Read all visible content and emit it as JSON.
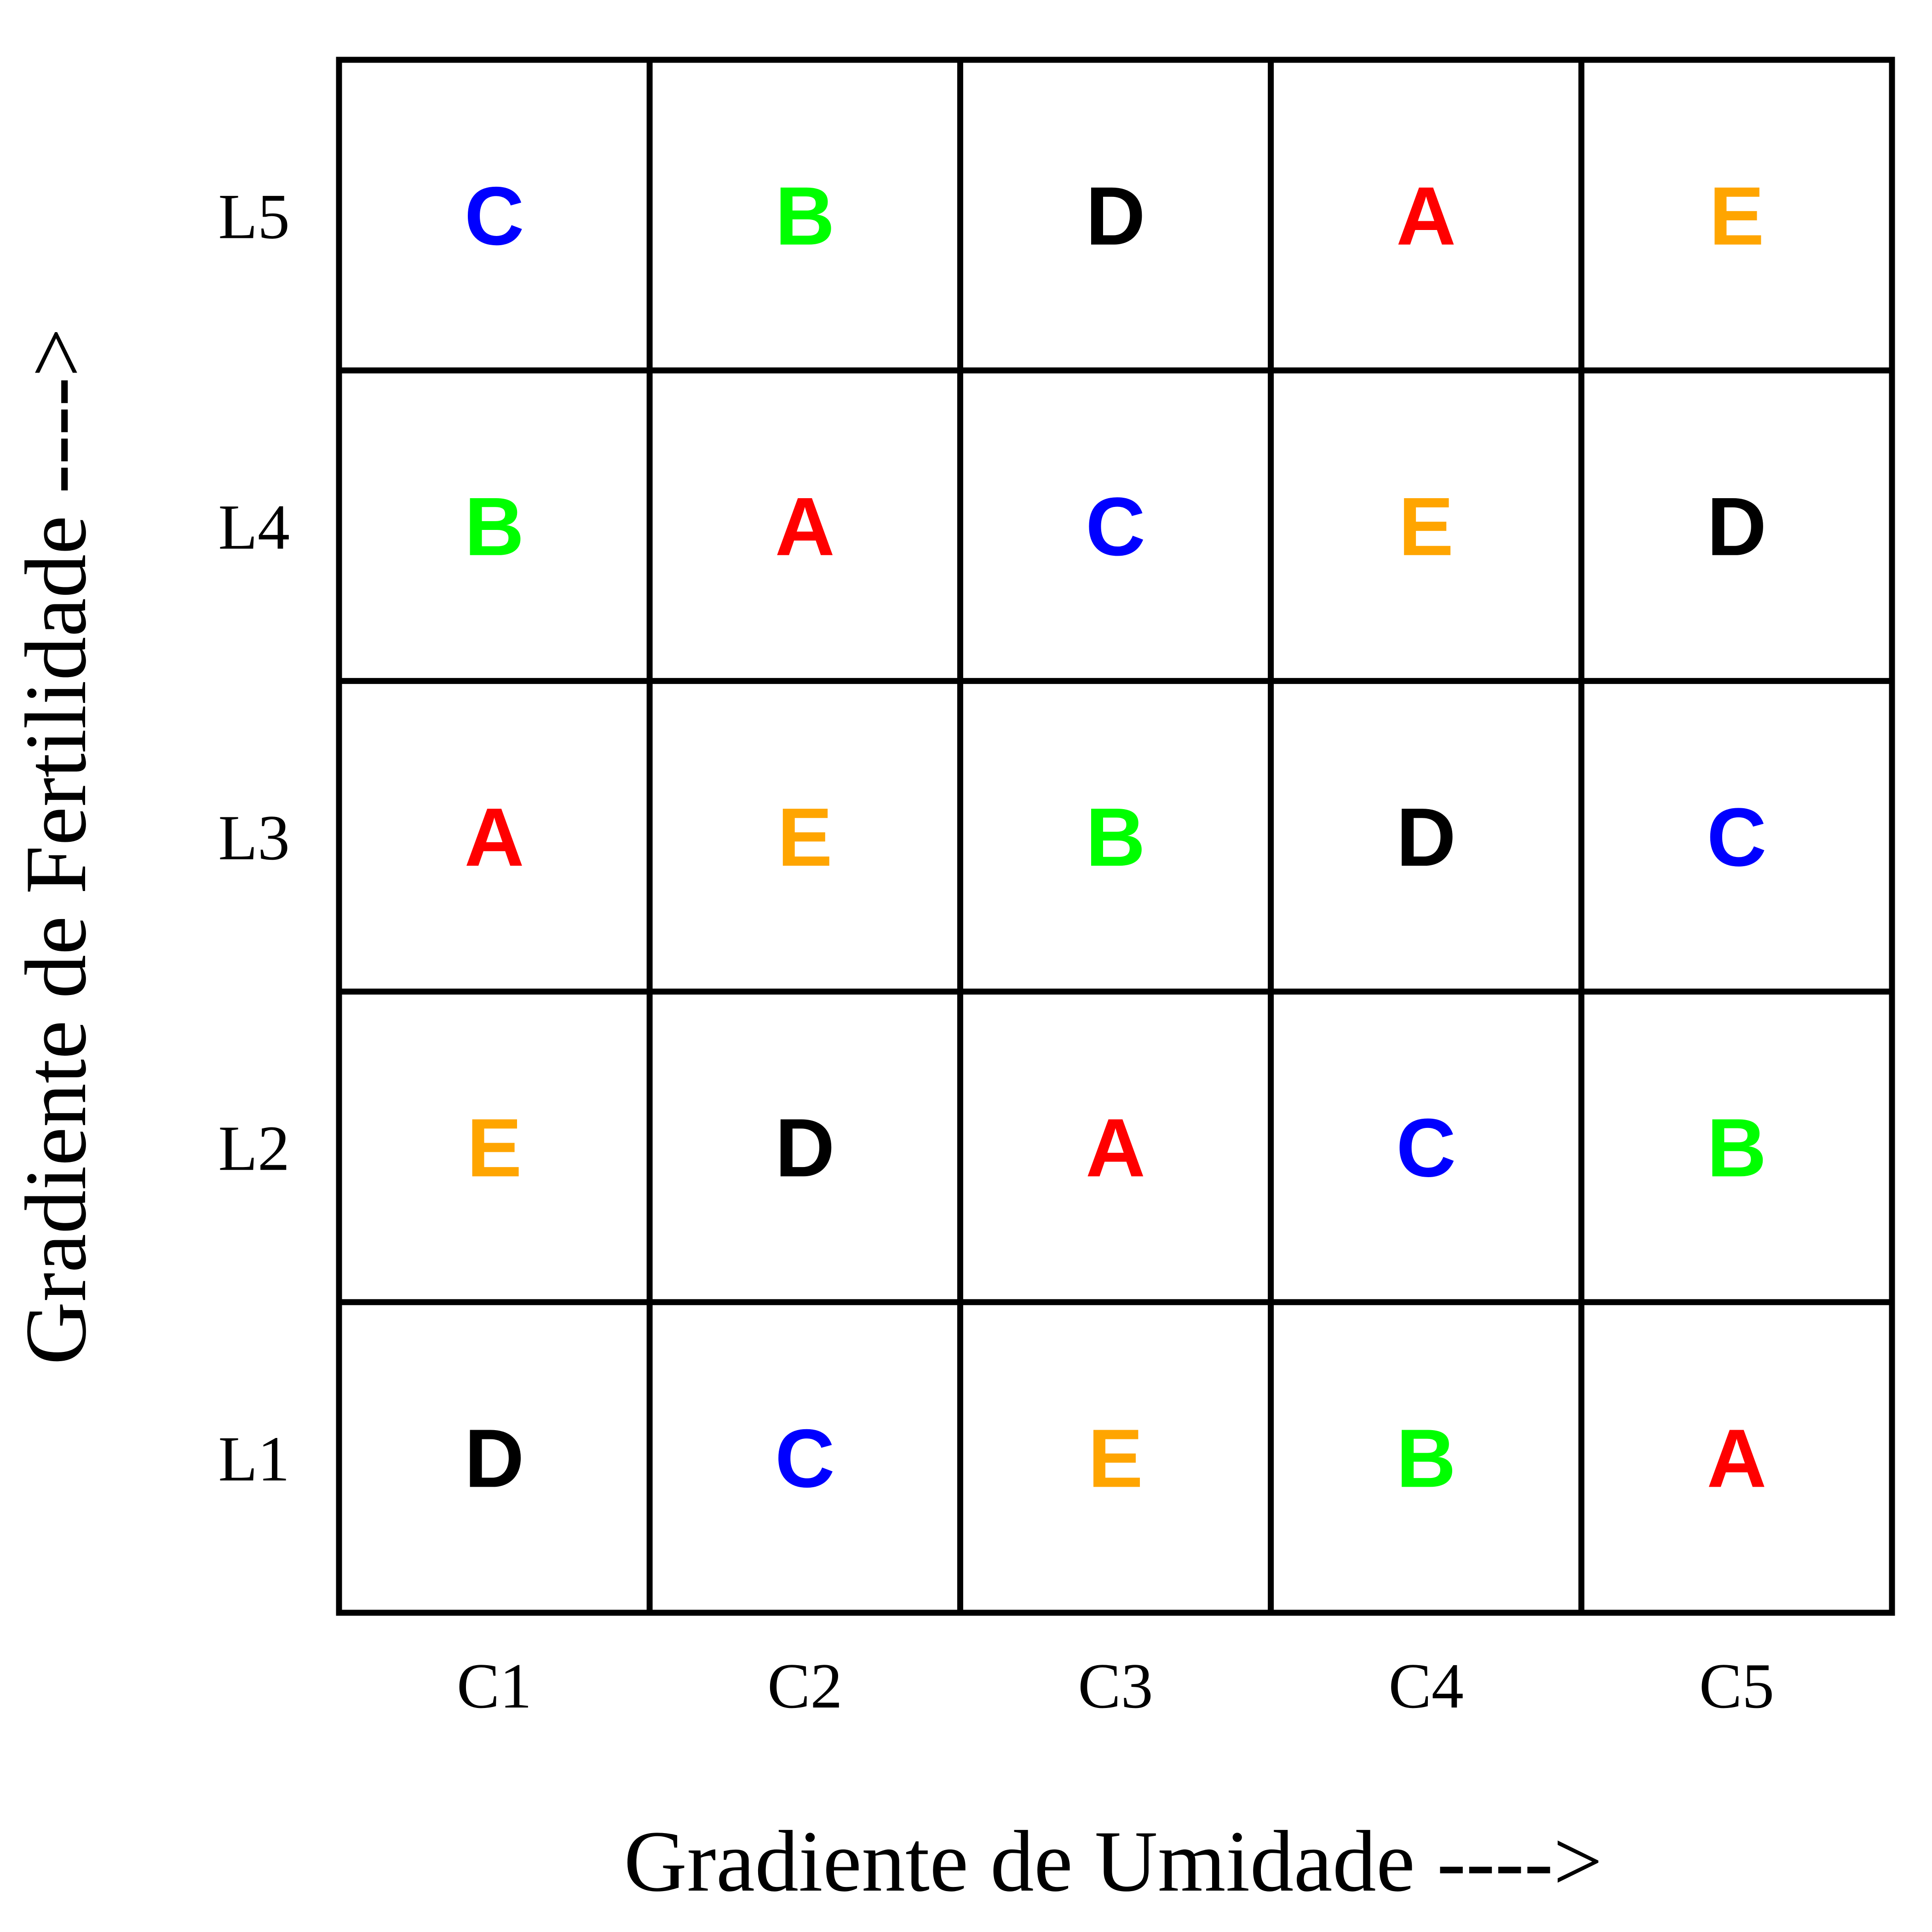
{
  "x_axis": {
    "label": "Gradiente de Umidade ---->",
    "ticks": [
      "C1",
      "C2",
      "C3",
      "C4",
      "C5"
    ]
  },
  "y_axis": {
    "label": "Gradiente de Fertilidade ---->",
    "ticks": [
      "L5",
      "L4",
      "L3",
      "L2",
      "L1"
    ]
  },
  "colors": {
    "A": "#ff0000",
    "B": "#00ff00",
    "C": "#0000ff",
    "D": "#000000",
    "E": "#ffa500"
  },
  "grid": [
    [
      "C",
      "B",
      "D",
      "A",
      "E"
    ],
    [
      "B",
      "A",
      "C",
      "E",
      "D"
    ],
    [
      "A",
      "E",
      "B",
      "D",
      "C"
    ],
    [
      "E",
      "D",
      "A",
      "C",
      "B"
    ],
    [
      "D",
      "C",
      "E",
      "B",
      "A"
    ]
  ]
}
